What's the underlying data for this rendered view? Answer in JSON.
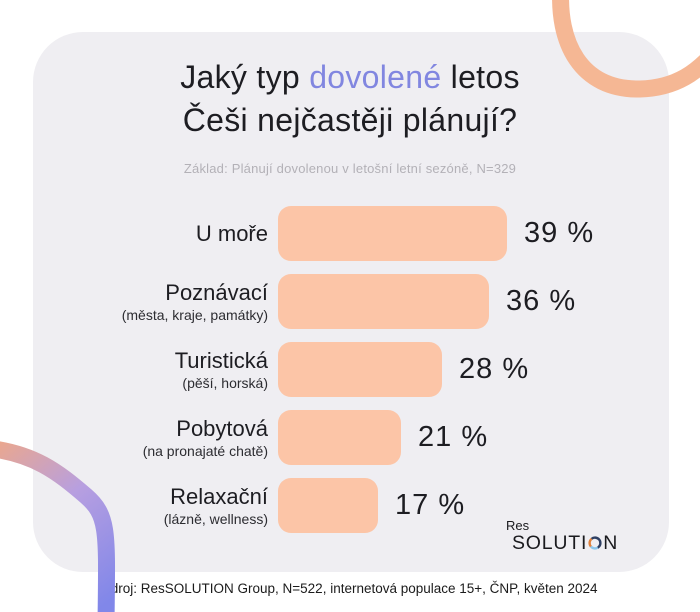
{
  "title": {
    "line1_pre": "Jaký typ ",
    "line1_highlight": "dovolené",
    "line1_post": " letos",
    "line2": "Češi nejčastěji plánují?"
  },
  "subtitle": "Základ: Plánují dovolenou v letošní letní sezóně, N=329",
  "chart_data": {
    "type": "bar",
    "orientation": "horizontal",
    "categories": [
      "U moře",
      "Poznávací",
      "Turistická",
      "Pobytová",
      "Relaxační"
    ],
    "category_notes": [
      "",
      "(města, kraje, památky)",
      "(pěší, horská)",
      "(na pronajaté chatě)",
      "(lázně, wellness)"
    ],
    "values": [
      39,
      36,
      28,
      21,
      17
    ],
    "value_labels": [
      "39 %",
      "36 %",
      "28 %",
      "21 %",
      "17 %"
    ],
    "unit": "%",
    "xlim": [
      0,
      100
    ],
    "bar_color": "#fcc5a7",
    "grid": false,
    "legend": false
  },
  "logo": {
    "res": "Res",
    "solution_pre": "SOLUTI",
    "solution_post": "N"
  },
  "footer": "Zdroj: ResSOLUTION Group, N=522, internetová populace 15+, ČNP, květen 2024",
  "colors": {
    "page_background": "#ffffff",
    "card_background": "#efeef2",
    "bar": "#fcc5a7",
    "highlight": "#8186e0",
    "title_text": "#1d1d22",
    "subtitle_text": "#b3b1b7",
    "curve_top_right": "#f5b794",
    "curve_gradient_start": "#eba78d",
    "curve_gradient_mid": "#b79fe0",
    "curve_gradient_end": "#8187e9",
    "logo_ring_navy": "#2e3f63",
    "logo_ring_blue": "#8ec7ec",
    "logo_ring_orange": "#e0813c"
  }
}
